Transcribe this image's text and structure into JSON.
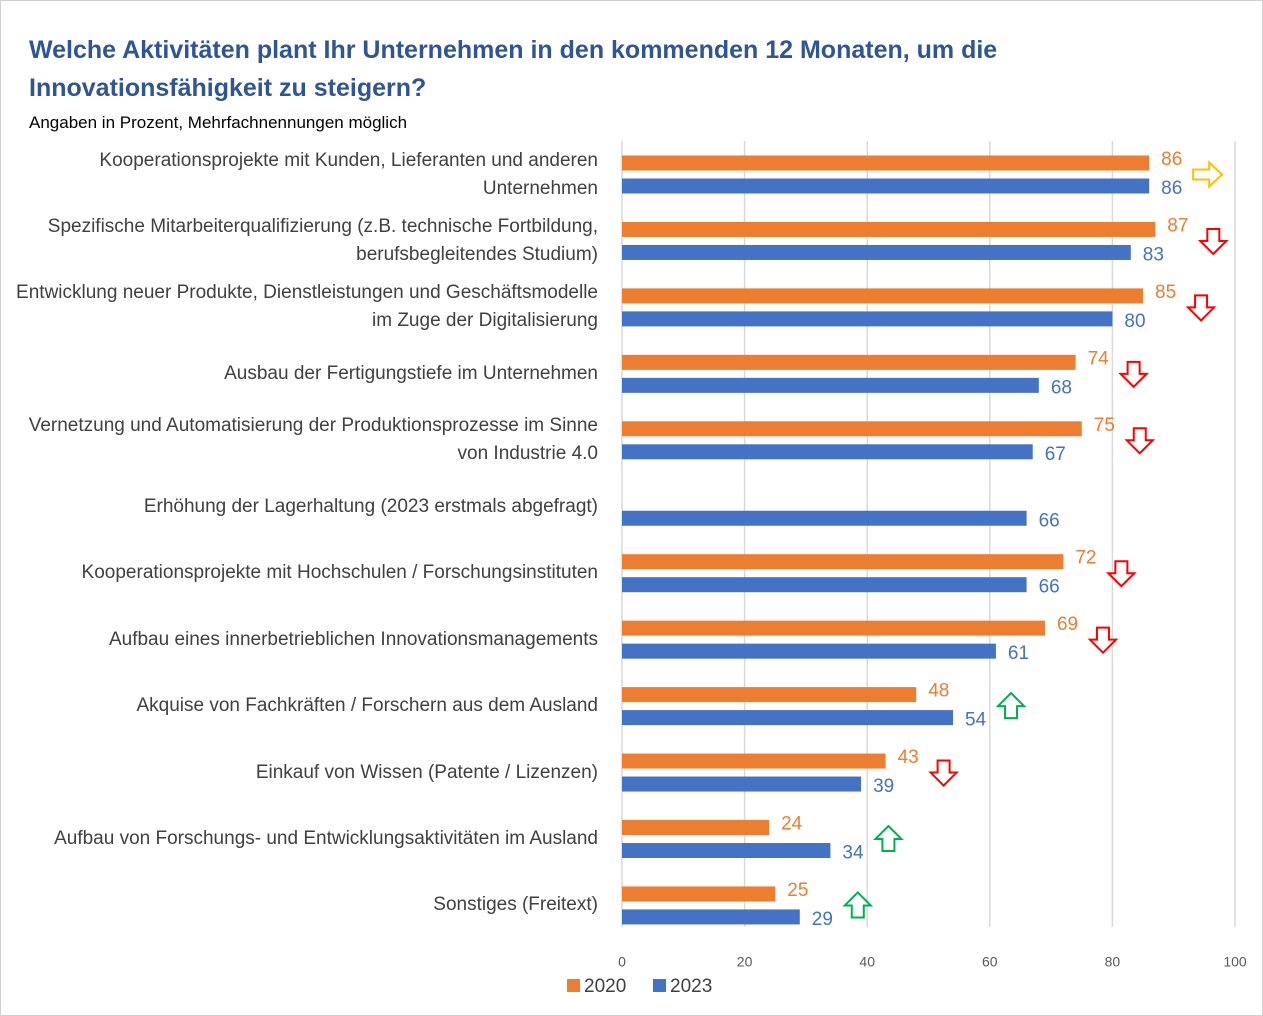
{
  "chart_data": {
    "type": "bar",
    "orientation": "horizontal",
    "title": "Welche Aktivitäten plant Ihr Unternehmen in den kommenden 12 Monaten, um die Innovationsfähigkeit zu steigern?",
    "subtitle": "Angaben in Prozent, Mehrfachnennungen möglich",
    "categories": [
      "Kooperationsprojekte mit Kunden, Lieferanten und anderen Unternehmen",
      "Spezifische Mitarbeiterqualifizierung (z.B. technische Fortbildung, berufsbegleitendes Studium)",
      "Entwicklung neuer Produkte, Dienstleistungen und Geschäftsmodelle im Zuge der Digitalisierung",
      "Ausbau der Fertigungstiefe im Unternehmen",
      "Vernetzung und Automatisierung der Produktionsprozesse im Sinne von Industrie 4.0",
      "Erhöhung der Lagerhaltung  (2023 erstmals abgefragt)",
      "Kooperationsprojekte mit Hochschulen / Forschungsinstituten",
      "Aufbau eines innerbetrieblichen Innovationsmanagements",
      "Akquise von Fachkräften / Forschern aus dem Ausland",
      "Einkauf von Wissen (Patente / Lizenzen)",
      "Aufbau von Forschungs- und Entwicklungsaktivitäten im Ausland",
      "Sonstiges (Freitext)"
    ],
    "series": [
      {
        "name": "2020",
        "color": "#ed7d31",
        "values": [
          86,
          87,
          85,
          74,
          75,
          null,
          72,
          69,
          48,
          43,
          24,
          25
        ]
      },
      {
        "name": "2023",
        "color": "#4472c4",
        "values": [
          86,
          83,
          80,
          68,
          67,
          66,
          66,
          61,
          54,
          39,
          34,
          29
        ]
      }
    ],
    "xlim": [
      0,
      100
    ],
    "xticks": [
      0,
      20,
      40,
      60,
      80,
      100
    ],
    "grid": true,
    "legend": "bottom"
  }
}
